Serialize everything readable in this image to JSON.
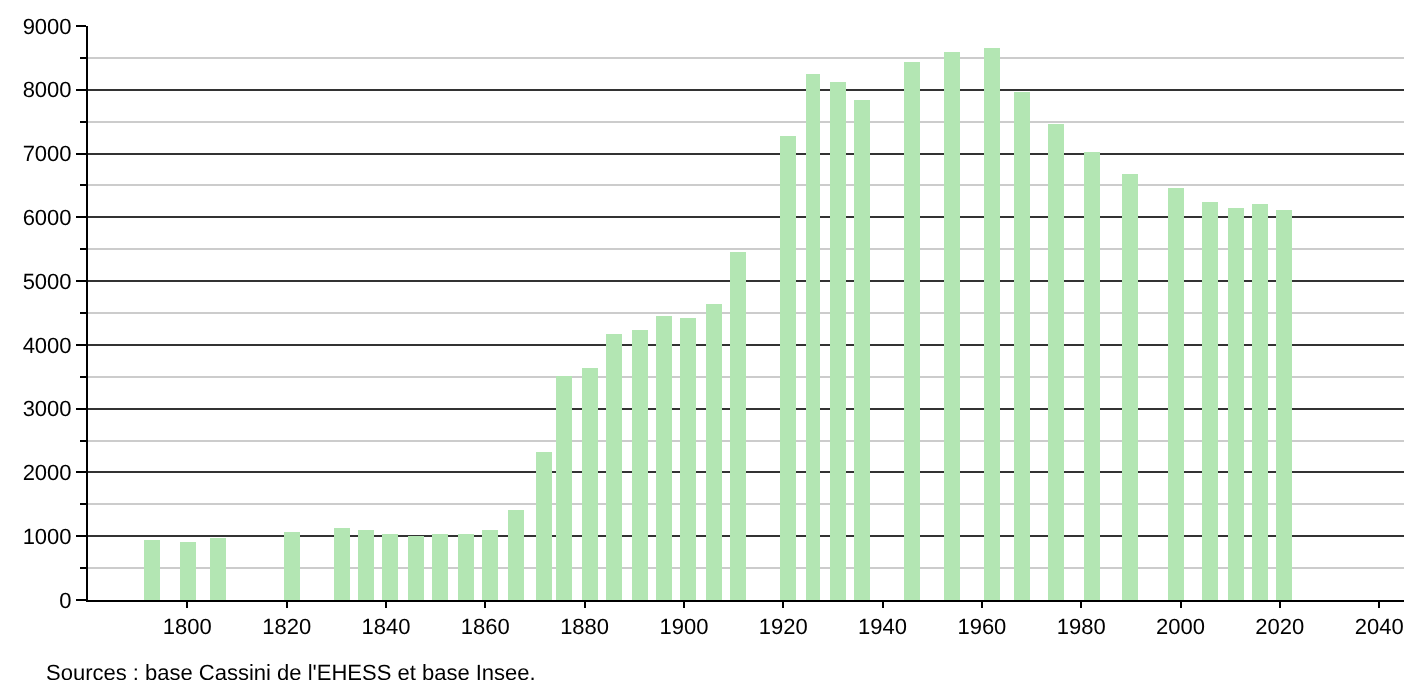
{
  "chart_data": {
    "type": "bar",
    "x": [
      1793,
      1800,
      1806,
      1821,
      1831,
      1836,
      1841,
      1846,
      1851,
      1856,
      1861,
      1866,
      1872,
      1876,
      1881,
      1886,
      1891,
      1896,
      1901,
      1906,
      1911,
      1921,
      1926,
      1931,
      1936,
      1946,
      1954,
      1962,
      1968,
      1975,
      1982,
      1990,
      1999,
      2006,
      2011,
      2016,
      2021
    ],
    "series": [
      {
        "color": "#b3e6b3",
        "values": [
          930,
          900,
          980,
          1055,
          1140,
          1085,
          1035,
          1000,
          1025,
          1025,
          1085,
          1400,
          2330,
          3500,
          3630,
          4160,
          4240,
          4450,
          4410,
          4640,
          5460,
          7280,
          8240,
          8120,
          7840,
          8440,
          8580,
          8650,
          7970,
          7460,
          7010,
          6670,
          6460,
          6230,
          6140,
          6210,
          6130
        ]
      }
    ],
    "xlim": [
      1780,
      2045
    ],
    "xticks": [
      1800,
      1820,
      1840,
      1860,
      1880,
      1900,
      1920,
      1940,
      1960,
      1980,
      2000,
      2020,
      2040
    ],
    "ylim": [
      0,
      9000
    ],
    "yticks": [
      0,
      {
        "value": 500,
        "label": null
      },
      1000,
      {
        "value": 1500,
        "label": null
      },
      2000,
      {
        "value": 2500,
        "label": null
      },
      3000,
      {
        "value": 3500,
        "label": null
      },
      4000,
      {
        "value": 4500,
        "label": null
      },
      5000,
      {
        "value": 5500,
        "label": null
      },
      6000,
      {
        "value": 6500,
        "label": null
      },
      7000,
      {
        "value": 7500,
        "label": null
      },
      8000,
      {
        "value": 8500,
        "label": null
      },
      9000
    ],
    "grid": "y",
    "annotations": [
      "Sources : base Cassini de l'EHESS et base Insee."
    ]
  }
}
